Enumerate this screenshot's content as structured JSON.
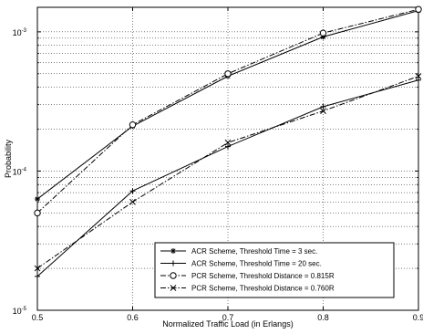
{
  "chart_data": {
    "type": "line",
    "title": "",
    "xlabel": "Normalized Traffic Load (in Erlangs)",
    "ylabel": "Probability",
    "xlim": [
      0.5,
      0.9
    ],
    "ylim": [
      1e-05,
      0.0015
    ],
    "yscale": "log",
    "grid": true,
    "legend_position": "bottom-right",
    "x_ticks": [
      {
        "value": 0.5,
        "label": "0.5"
      },
      {
        "value": 0.6,
        "label": "0.6"
      },
      {
        "value": 0.7,
        "label": "0.7"
      },
      {
        "value": 0.8,
        "label": "0.8"
      },
      {
        "value": 0.9,
        "label": "0.9"
      }
    ],
    "y_ticks": [
      {
        "value": 1e-05,
        "base": "10",
        "exp": "-5"
      },
      {
        "value": 0.0001,
        "base": "10",
        "exp": "-4"
      },
      {
        "value": 0.001,
        "base": "10",
        "exp": "-3"
      }
    ],
    "x": [
      0.5,
      0.6,
      0.7,
      0.8,
      0.9
    ],
    "series": [
      {
        "name": "ACR Scheme, Threshold Time = 3 sec.",
        "values": [
          6.3e-05,
          0.00021,
          0.00048,
          0.00092,
          0.00142
        ],
        "dash": "solid",
        "marker": "asterisk"
      },
      {
        "name": "ACR Scheme, Threshold Time = 20 sec.",
        "values": [
          1.75e-05,
          7.2e-05,
          0.00015,
          0.00029,
          0.00045
        ],
        "dash": "solid",
        "marker": "plus"
      },
      {
        "name": "PCR Scheme, Threshold Distance = 0.815R",
        "values": [
          5e-05,
          0.000215,
          0.0005,
          0.00098,
          0.00145
        ],
        "dash": "dashdot",
        "marker": "circle"
      },
      {
        "name": "PCR Scheme, Threshold Distance = 0.760R",
        "values": [
          2e-05,
          6e-05,
          0.00016,
          0.00027,
          0.00048
        ],
        "dash": "dashdot",
        "marker": "x"
      }
    ]
  }
}
